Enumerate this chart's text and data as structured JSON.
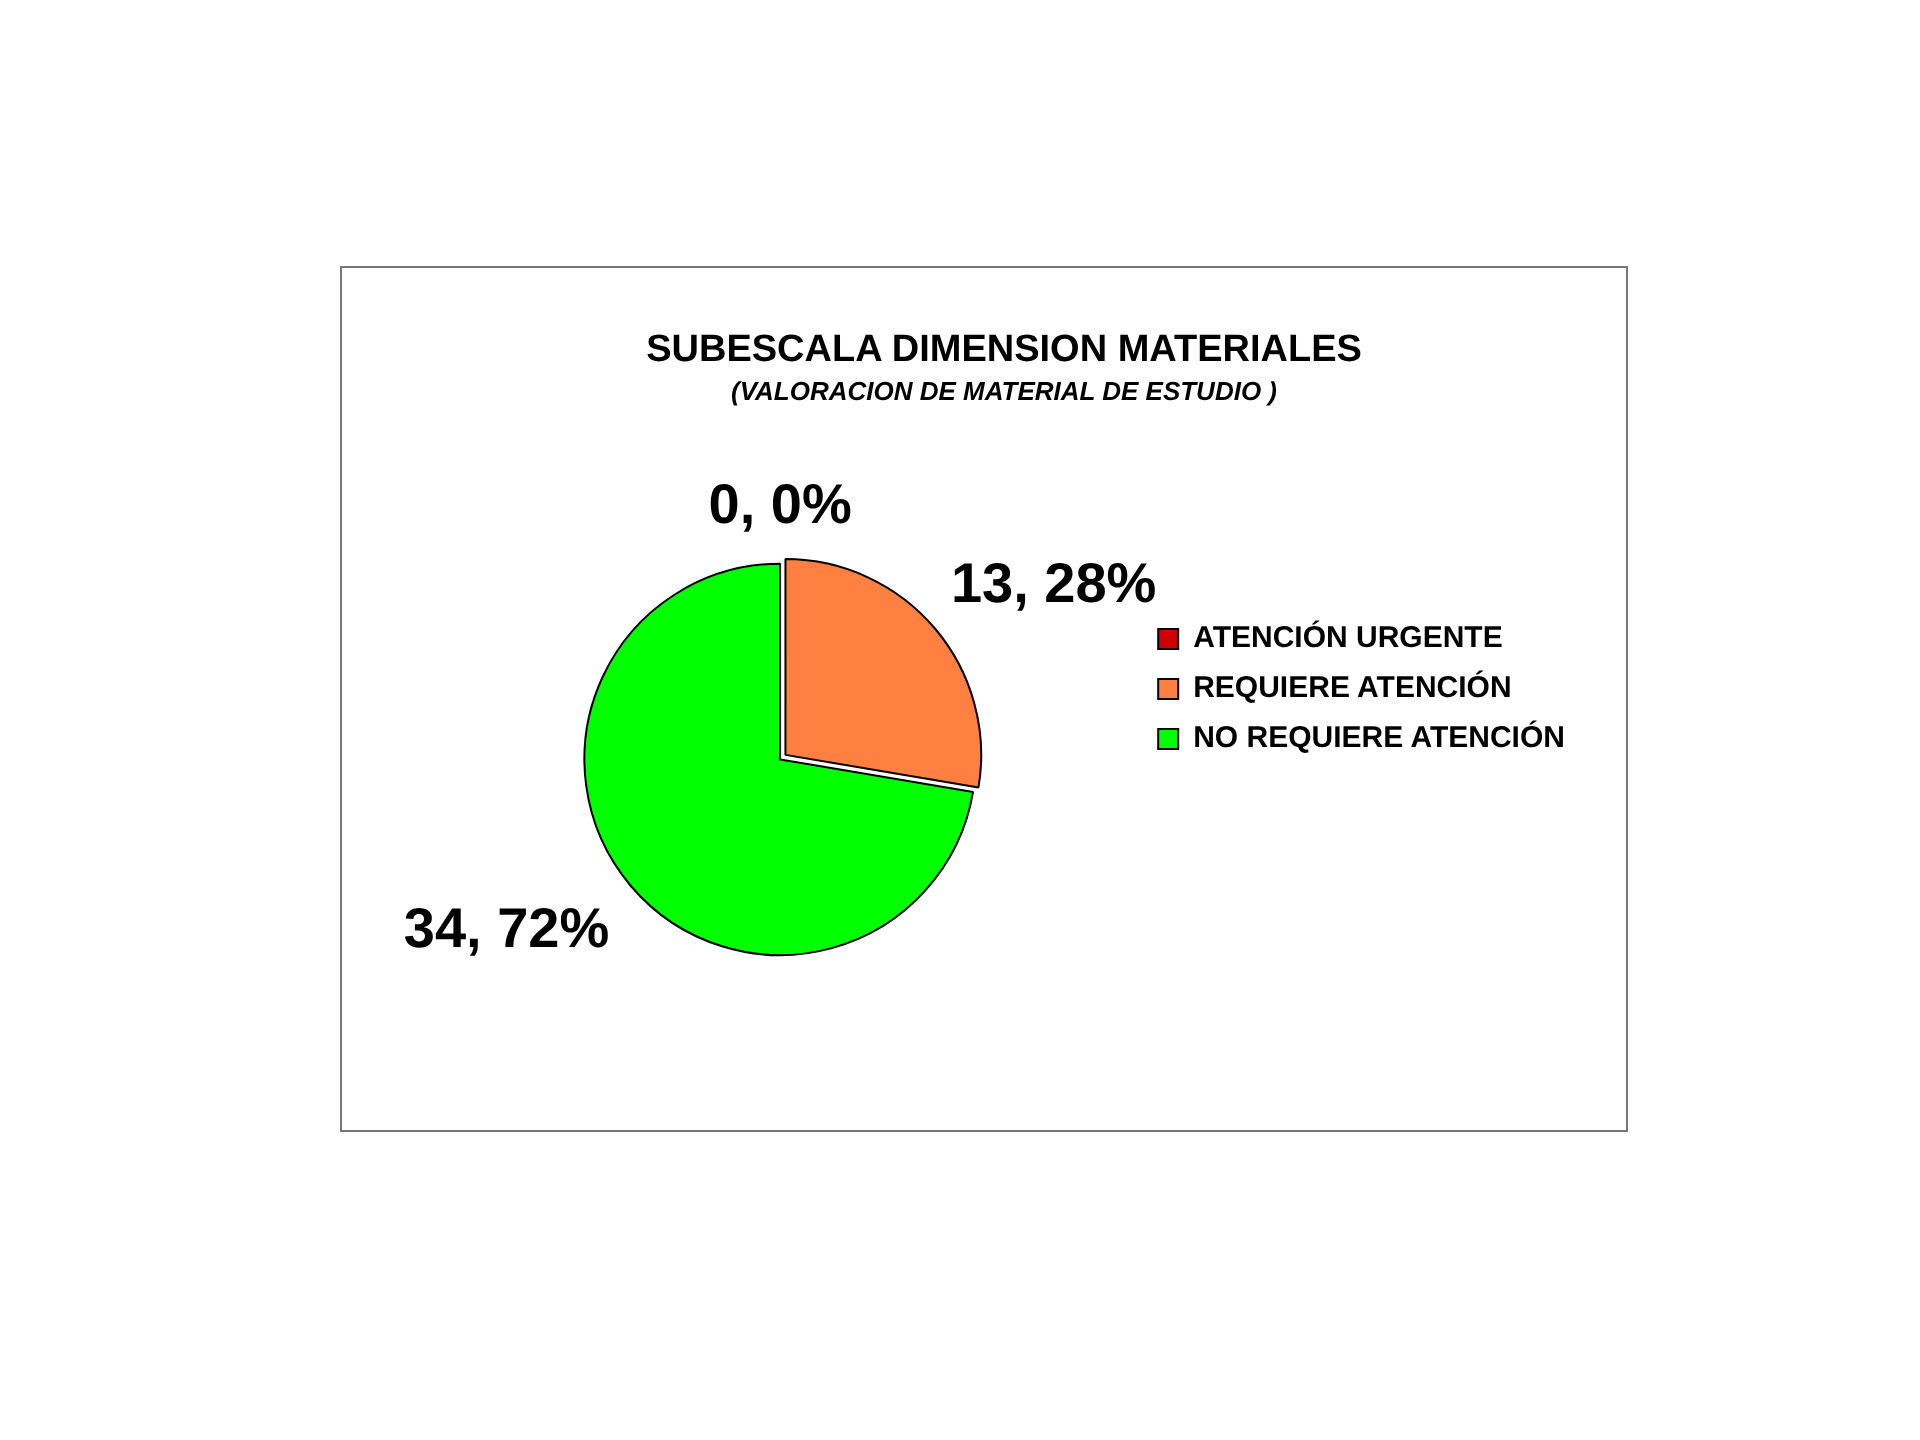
{
  "chart_data": {
    "type": "pie",
    "title": "SUBESCALA DIMENSION MATERIALES",
    "subtitle": "(VALORACION DE MATERIAL DE ESTUDIO )",
    "categories": [
      "ATENCIÓN URGENTE",
      "REQUIERE ATENCIÓN",
      "NO REQUIERE ATENCIÓN"
    ],
    "values": [
      0,
      13,
      34
    ],
    "colors": [
      "#cc0000",
      "#ff8040",
      "#00ff00"
    ],
    "value_labels": [
      "0, 0%",
      "13, 28%",
      "34, 72%"
    ],
    "legend": "right"
  }
}
